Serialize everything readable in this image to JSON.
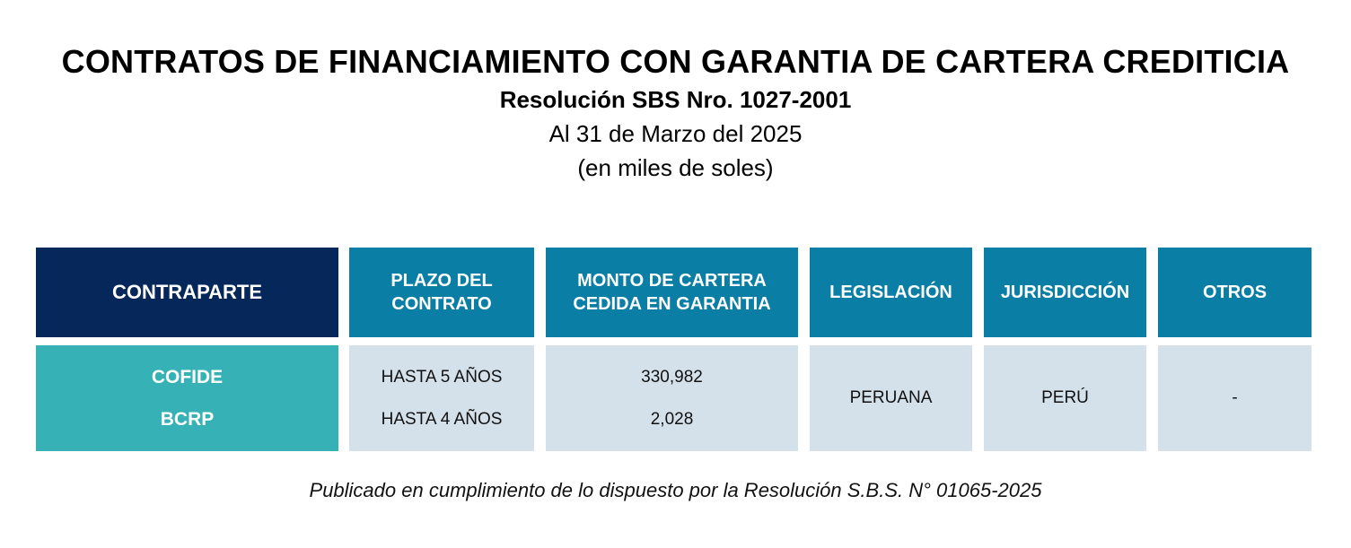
{
  "header": {
    "title": "CONTRATOS DE FINANCIAMIENTO CON GARANTIA DE CARTERA CREDITICIA",
    "subtitle": "Resolución SBS Nro. 1027-2001",
    "date": "Al 31 de Marzo del 2025",
    "units": "(en miles de soles)"
  },
  "table": {
    "columns": {
      "contraparte": "CONTRAPARTE",
      "plazo_l1": "PLAZO DEL",
      "plazo_l2": "CONTRATO",
      "monto_l1": "MONTO DE CARTERA",
      "monto_l2": "CEDIDA EN GARANTIA",
      "legislacion": "LEGISLACIÓN",
      "jurisdiccion": "JURISDICCIÓN",
      "otros": "OTROS"
    },
    "rows": [
      {
        "contraparte": "COFIDE",
        "plazo": "HASTA 5 AÑOS",
        "monto": "330,982"
      },
      {
        "contraparte": "BCRP",
        "plazo": "HASTA 4 AÑOS",
        "monto": "2,028"
      }
    ],
    "legislacion": "PERUANA",
    "jurisdiccion": "PERÚ",
    "otros": "-"
  },
  "footer": {
    "note": "Publicado en cumplimiento de lo dispuesto por la Resolución S.B.S. N° 01065-2025"
  }
}
